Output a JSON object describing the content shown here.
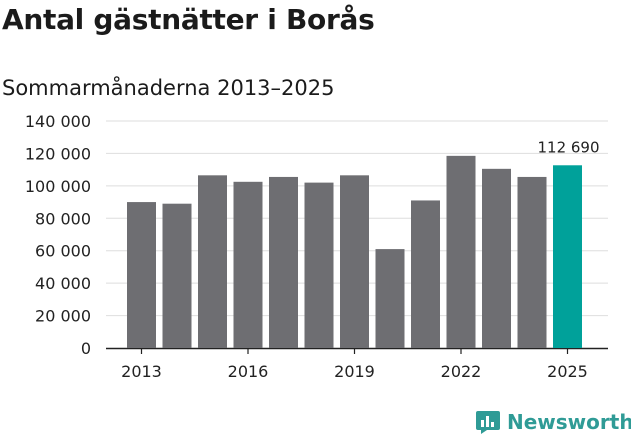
{
  "title": "Antal gästnätter i Borås",
  "subtitle": "Sommarmånaderna 2013–2025",
  "brand": {
    "name": "Newsworthy",
    "logo_icon": "bar-chart-badge-icon"
  },
  "colors": {
    "bar": "#6e6e72",
    "highlight": "#00a19a",
    "grid": "#dedede",
    "axis": "#222222",
    "brand": "#2f9b96"
  },
  "chart_data": {
    "type": "bar",
    "title": "Antal gästnätter i Borås",
    "subtitle": "Sommarmånaderna 2013–2025",
    "xlabel": "",
    "ylabel": "",
    "categories": [
      "2013",
      "2014",
      "2015",
      "2016",
      "2017",
      "2018",
      "2019",
      "2020",
      "2021",
      "2022",
      "2023",
      "2024",
      "2025"
    ],
    "values": [
      90000,
      89000,
      106500,
      102500,
      105500,
      102000,
      106500,
      61000,
      91000,
      118500,
      110500,
      105500,
      112690
    ],
    "highlight_index": 12,
    "data_labels": [
      {
        "index": 12,
        "text": "112 690"
      }
    ],
    "ylim": [
      0,
      140000
    ],
    "yticks": [
      0,
      20000,
      40000,
      60000,
      80000,
      100000,
      120000,
      140000
    ],
    "ytick_labels": [
      "0",
      "20 000",
      "40 000",
      "60 000",
      "80 000",
      "100 000",
      "120 000",
      "140 000"
    ],
    "xtick_labels": [
      "2013",
      "2016",
      "2019",
      "2022",
      "2025"
    ],
    "grid": true,
    "legend": "none"
  }
}
